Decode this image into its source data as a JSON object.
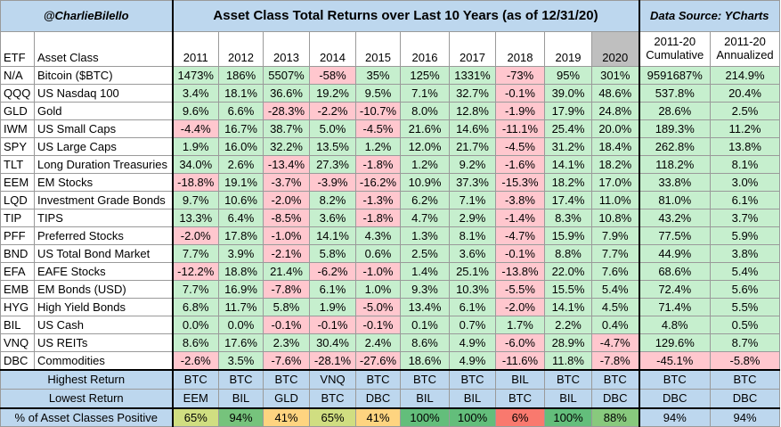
{
  "title": {
    "handle": "@CharlieBilello",
    "main": "Asset Class Total Returns over Last 10 Years (as of 12/31/20)",
    "source": "Data Source: YCharts"
  },
  "header": {
    "etf": "ETF",
    "asset_class": "Asset Class",
    "years": [
      "2011",
      "2012",
      "2013",
      "2014",
      "2015",
      "2016",
      "2017",
      "2018",
      "2019",
      "2020"
    ],
    "cum_top": "2011-20",
    "cum_bottom": "Cumulative",
    "ann_top": "2011-20",
    "ann_bottom": "Annualized"
  },
  "rows": [
    {
      "etf": "N/A",
      "name": "Bitcoin ($BTC)",
      "vals": [
        "1473%",
        "186%",
        "5507%",
        "-58%",
        "35%",
        "125%",
        "1331%",
        "-73%",
        "95%",
        "301%"
      ],
      "cum": "9591687%",
      "ann": "214.9%"
    },
    {
      "etf": "QQQ",
      "name": "US Nasdaq 100",
      "vals": [
        "3.4%",
        "18.1%",
        "36.6%",
        "19.2%",
        "9.5%",
        "7.1%",
        "32.7%",
        "-0.1%",
        "39.0%",
        "48.6%"
      ],
      "cum": "537.8%",
      "ann": "20.4%"
    },
    {
      "etf": "GLD",
      "name": "Gold",
      "vals": [
        "9.6%",
        "6.6%",
        "-28.3%",
        "-2.2%",
        "-10.7%",
        "8.0%",
        "12.8%",
        "-1.9%",
        "17.9%",
        "24.8%"
      ],
      "cum": "28.6%",
      "ann": "2.5%"
    },
    {
      "etf": "IWM",
      "name": "US Small Caps",
      "vals": [
        "-4.4%",
        "16.7%",
        "38.7%",
        "5.0%",
        "-4.5%",
        "21.6%",
        "14.6%",
        "-11.1%",
        "25.4%",
        "20.0%"
      ],
      "cum": "189.3%",
      "ann": "11.2%"
    },
    {
      "etf": "SPY",
      "name": "US Large Caps",
      "vals": [
        "1.9%",
        "16.0%",
        "32.2%",
        "13.5%",
        "1.2%",
        "12.0%",
        "21.7%",
        "-4.5%",
        "31.2%",
        "18.4%"
      ],
      "cum": "262.8%",
      "ann": "13.8%"
    },
    {
      "etf": "TLT",
      "name": "Long Duration Treasuries",
      "vals": [
        "34.0%",
        "2.6%",
        "-13.4%",
        "27.3%",
        "-1.8%",
        "1.2%",
        "9.2%",
        "-1.6%",
        "14.1%",
        "18.2%"
      ],
      "cum": "118.2%",
      "ann": "8.1%"
    },
    {
      "etf": "EEM",
      "name": "EM Stocks",
      "vals": [
        "-18.8%",
        "19.1%",
        "-3.7%",
        "-3.9%",
        "-16.2%",
        "10.9%",
        "37.3%",
        "-15.3%",
        "18.2%",
        "17.0%"
      ],
      "cum": "33.8%",
      "ann": "3.0%"
    },
    {
      "etf": "LQD",
      "name": "Investment Grade Bonds",
      "vals": [
        "9.7%",
        "10.6%",
        "-2.0%",
        "8.2%",
        "-1.3%",
        "6.2%",
        "7.1%",
        "-3.8%",
        "17.4%",
        "11.0%"
      ],
      "cum": "81.0%",
      "ann": "6.1%"
    },
    {
      "etf": "TIP",
      "name": "TIPS",
      "vals": [
        "13.3%",
        "6.4%",
        "-8.5%",
        "3.6%",
        "-1.8%",
        "4.7%",
        "2.9%",
        "-1.4%",
        "8.3%",
        "10.8%"
      ],
      "cum": "43.2%",
      "ann": "3.7%"
    },
    {
      "etf": "PFF",
      "name": "Preferred Stocks",
      "vals": [
        "-2.0%",
        "17.8%",
        "-1.0%",
        "14.1%",
        "4.3%",
        "1.3%",
        "8.1%",
        "-4.7%",
        "15.9%",
        "7.9%"
      ],
      "cum": "77.5%",
      "ann": "5.9%"
    },
    {
      "etf": "BND",
      "name": "US Total Bond Market",
      "vals": [
        "7.7%",
        "3.9%",
        "-2.1%",
        "5.8%",
        "0.6%",
        "2.5%",
        "3.6%",
        "-0.1%",
        "8.8%",
        "7.7%"
      ],
      "cum": "44.9%",
      "ann": "3.8%"
    },
    {
      "etf": "EFA",
      "name": "EAFE Stocks",
      "vals": [
        "-12.2%",
        "18.8%",
        "21.4%",
        "-6.2%",
        "-1.0%",
        "1.4%",
        "25.1%",
        "-13.8%",
        "22.0%",
        "7.6%"
      ],
      "cum": "68.6%",
      "ann": "5.4%"
    },
    {
      "etf": "EMB",
      "name": "EM Bonds (USD)",
      "vals": [
        "7.7%",
        "16.9%",
        "-7.8%",
        "6.1%",
        "1.0%",
        "9.3%",
        "10.3%",
        "-5.5%",
        "15.5%",
        "5.4%"
      ],
      "cum": "72.4%",
      "ann": "5.6%"
    },
    {
      "etf": "HYG",
      "name": "High Yield Bonds",
      "vals": [
        "6.8%",
        "11.7%",
        "5.8%",
        "1.9%",
        "-5.0%",
        "13.4%",
        "6.1%",
        "-2.0%",
        "14.1%",
        "4.5%"
      ],
      "cum": "71.4%",
      "ann": "5.5%"
    },
    {
      "etf": "BIL",
      "name": "US Cash",
      "vals": [
        "0.0%",
        "0.0%",
        "-0.1%",
        "-0.1%",
        "-0.1%",
        "0.1%",
        "0.7%",
        "1.7%",
        "2.2%",
        "0.4%"
      ],
      "cum": "4.8%",
      "ann": "0.5%"
    },
    {
      "etf": "VNQ",
      "name": "US REITs",
      "vals": [
        "8.6%",
        "17.6%",
        "2.3%",
        "30.4%",
        "2.4%",
        "8.6%",
        "4.9%",
        "-6.0%",
        "28.9%",
        "-4.7%"
      ],
      "cum": "129.6%",
      "ann": "8.7%"
    },
    {
      "etf": "DBC",
      "name": "Commodities",
      "vals": [
        "-2.6%",
        "3.5%",
        "-7.6%",
        "-28.1%",
        "-27.6%",
        "18.6%",
        "4.9%",
        "-11.6%",
        "11.8%",
        "-7.8%"
      ],
      "cum": "-45.1%",
      "ann": "-5.8%"
    }
  ],
  "highest": {
    "label": "Highest Return",
    "vals": [
      "BTC",
      "BTC",
      "BTC",
      "VNQ",
      "BTC",
      "BTC",
      "BTC",
      "BIL",
      "BTC",
      "BTC"
    ],
    "cum": "BTC",
    "ann": "BTC"
  },
  "lowest": {
    "label": "Lowest Return",
    "vals": [
      "EEM",
      "BIL",
      "GLD",
      "BTC",
      "DBC",
      "BIL",
      "BIL",
      "BTC",
      "BIL",
      "DBC"
    ],
    "cum": "DBC",
    "ann": "DBC"
  },
  "positive": {
    "label": "% of Asset Classes Positive",
    "vals": [
      "65%",
      "94%",
      "41%",
      "65%",
      "41%",
      "100%",
      "100%",
      "6%",
      "100%",
      "88%"
    ],
    "cum": "94%",
    "ann": "94%"
  },
  "colors": {
    "positive_fill": "#c6efce",
    "negative_fill": "#ffc7ce",
    "header_fill": "#bdd7ee",
    "highlight_2020": "#bfbfbf",
    "pct_scale_low": "#f8696b",
    "pct_scale_mid": "#ffeb84",
    "pct_scale_high": "#63be7b"
  },
  "chart_data": {
    "type": "table",
    "title": "Asset Class Total Returns over Last 10 Years (as of 12/31/20)",
    "columns": [
      "ETF",
      "Asset Class",
      "2011",
      "2012",
      "2013",
      "2014",
      "2015",
      "2016",
      "2017",
      "2018",
      "2019",
      "2020",
      "2011-20 Cumulative",
      "2011-20 Annualized"
    ]
  }
}
